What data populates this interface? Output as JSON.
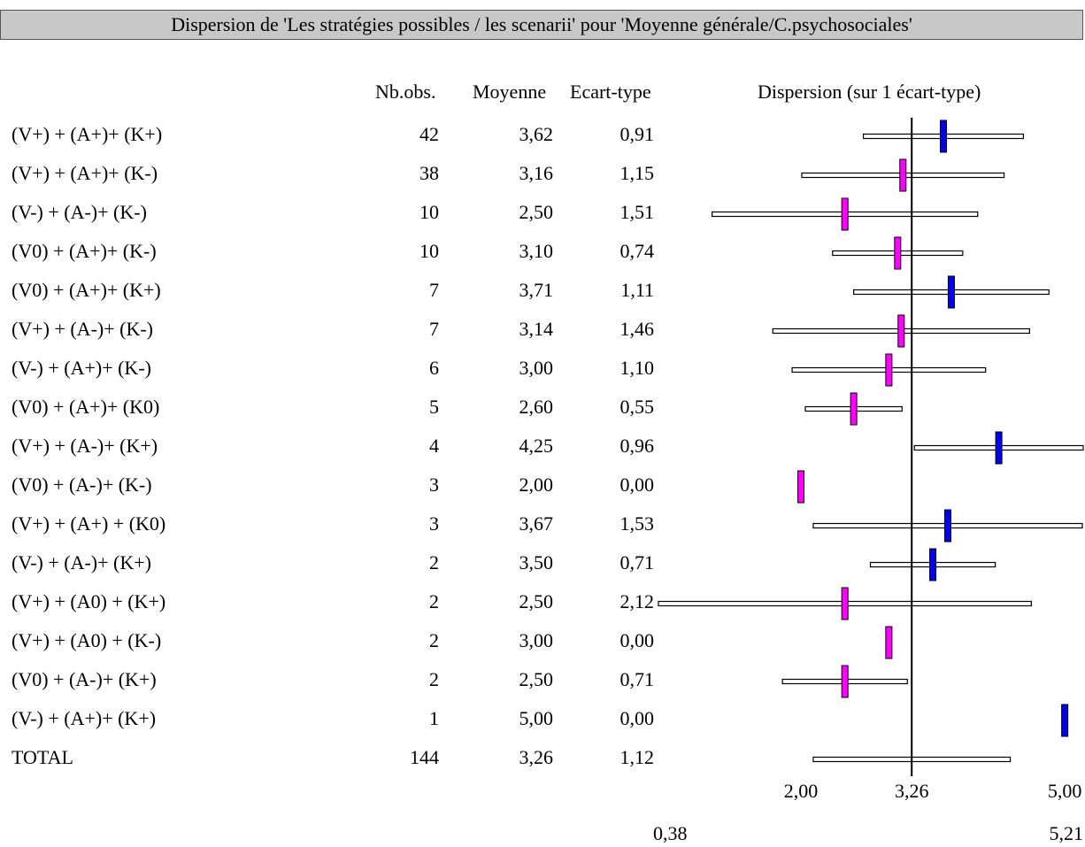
{
  "title": "Dispersion de 'Les stratégies possibles / les scenarii' pour 'Moyenne générale/C.psychosociales'",
  "headers": {
    "nb_obs": "Nb.obs.",
    "moyenne": "Moyenne",
    "ecart_type": "Ecart-type",
    "dispersion": "Dispersion (sur 1 écart-type)"
  },
  "colors": {
    "above_mean": "#0000ee",
    "below_mean": "#ff00ff",
    "title_bg": "#c8c8c8"
  },
  "chart_data": {
    "type": "range",
    "title": "Dispersion de 'Les stratégies possibles / les scenarii' pour 'Moyenne générale/C.psychosociales'",
    "overall_mean": 3.26,
    "xlim": [
      0.38,
      5.21
    ],
    "axis_labels": [
      "2,00",
      "3,26",
      "5,00"
    ],
    "axis_range_labels": [
      "0,38",
      "5,21"
    ],
    "rows": [
      {
        "label": "(V+) + (A+)+ (K+)",
        "n": "42",
        "mean": 3.62,
        "mean_text": "3,62",
        "sd": 0.91,
        "sd_text": "0,91"
      },
      {
        "label": "(V+) + (A+)+ (K-)",
        "n": "38",
        "mean": 3.16,
        "mean_text": "3,16",
        "sd": 1.15,
        "sd_text": "1,15"
      },
      {
        "label": "(V-) + (A-)+ (K-)",
        "n": "10",
        "mean": 2.5,
        "mean_text": "2,50",
        "sd": 1.51,
        "sd_text": "1,51"
      },
      {
        "label": "(V0) + (A+)+ (K-)",
        "n": "10",
        "mean": 3.1,
        "mean_text": "3,10",
        "sd": 0.74,
        "sd_text": "0,74"
      },
      {
        "label": "(V0) + (A+)+ (K+)",
        "n": "7",
        "mean": 3.71,
        "mean_text": "3,71",
        "sd": 1.11,
        "sd_text": "1,11"
      },
      {
        "label": "(V+) + (A-)+ (K-)",
        "n": "7",
        "mean": 3.14,
        "mean_text": "3,14",
        "sd": 1.46,
        "sd_text": "1,46"
      },
      {
        "label": "(V-) + (A+)+ (K-)",
        "n": "6",
        "mean": 3.0,
        "mean_text": "3,00",
        "sd": 1.1,
        "sd_text": "1,10"
      },
      {
        "label": "(V0) + (A+)+ (K0)",
        "n": "5",
        "mean": 2.6,
        "mean_text": "2,60",
        "sd": 0.55,
        "sd_text": "0,55"
      },
      {
        "label": "(V+) + (A-)+ (K+)",
        "n": "4",
        "mean": 4.25,
        "mean_text": "4,25",
        "sd": 0.96,
        "sd_text": "0,96"
      },
      {
        "label": "(V0) + (A-)+ (K-)",
        "n": "3",
        "mean": 2.0,
        "mean_text": "2,00",
        "sd": 0.0,
        "sd_text": "0,00"
      },
      {
        "label": "(V+) + (A+) + (K0)",
        "n": "3",
        "mean": 3.67,
        "mean_text": "3,67",
        "sd": 1.53,
        "sd_text": "1,53"
      },
      {
        "label": "(V-) + (A-)+ (K+)",
        "n": "2",
        "mean": 3.5,
        "mean_text": "3,50",
        "sd": 0.71,
        "sd_text": "0,71"
      },
      {
        "label": "(V+) + (A0) + (K+)",
        "n": "2",
        "mean": 2.5,
        "mean_text": "2,50",
        "sd": 2.12,
        "sd_text": "2,12"
      },
      {
        "label": "(V+) + (A0) + (K-)",
        "n": "2",
        "mean": 3.0,
        "mean_text": "3,00",
        "sd": 0.0,
        "sd_text": "0,00"
      },
      {
        "label": "(V0) + (A-)+ (K+)",
        "n": "2",
        "mean": 2.5,
        "mean_text": "2,50",
        "sd": 0.71,
        "sd_text": "0,71"
      },
      {
        "label": "(V-) + (A+)+ (K+)",
        "n": "1",
        "mean": 5.0,
        "mean_text": "5,00",
        "sd": 0.0,
        "sd_text": "0,00"
      }
    ],
    "total": {
      "label": "TOTAL",
      "n": "144",
      "mean": 3.26,
      "mean_text": "3,26",
      "sd": 1.12,
      "sd_text": "1,12"
    }
  }
}
